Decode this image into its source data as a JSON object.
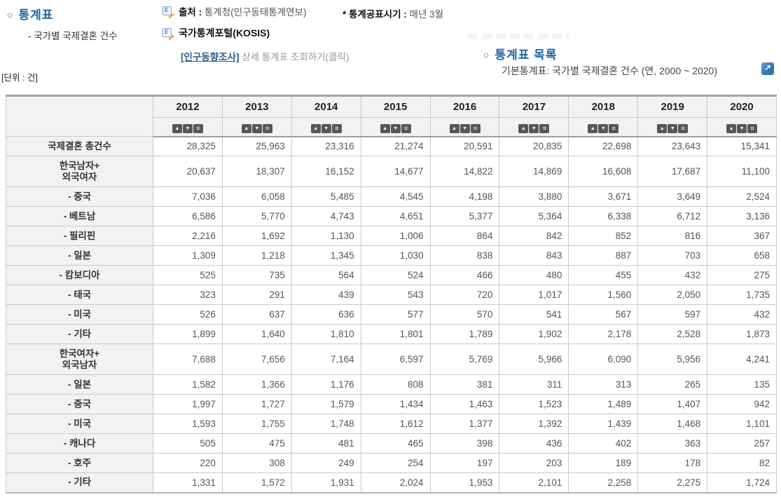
{
  "page": {
    "left_header": {
      "bullet": "○",
      "title": "통계표",
      "subtitle": "- 국가별 국제결혼 건수"
    },
    "source_block": {
      "source_label": "출처 :",
      "source_value": "통계청(인구동태통계연보)",
      "publish_label": "* 통계공표시기 :",
      "publish_value": "매년 3월",
      "kosis_label": "국가통계포털(KOSIS)",
      "detail_link_label": "[인구동향조사]",
      "detail_link_suffix": " 상세 통계표 조회하기(클릭)"
    },
    "right_header": {
      "bullet": "○",
      "title": "통계표 목록",
      "subtitle": "기본통계표: 국가별 국제결혼 건수 (연, 2000 ~ 2020)",
      "external_link_glyph": "↗"
    },
    "unit_label": "[단위 : 건]"
  },
  "colors": {
    "accent_blue": "#1b67a5",
    "link_navy": "#2f5d8c",
    "header_bg": "#f2f2f2",
    "sort_button_bg": "#575757",
    "extlink_blue": "#2e75b6"
  },
  "table": {
    "years": [
      "2012",
      "2013",
      "2014",
      "2015",
      "2016",
      "2017",
      "2018",
      "2019",
      "2020"
    ],
    "sort_buttons": [
      {
        "name": "sort-asc-button",
        "glyph": "▲"
      },
      {
        "name": "sort-desc-button",
        "glyph": "▼"
      },
      {
        "name": "sort-menu-button",
        "glyph": "≡"
      }
    ],
    "rows": [
      {
        "label": "국제결혼 총건수",
        "tall": false,
        "values": [
          "28,325",
          "25,963",
          "23,316",
          "21,274",
          "20,591",
          "20,835",
          "22,698",
          "23,643",
          "15,341"
        ]
      },
      {
        "label": "한국남자+\n외국여자",
        "tall": true,
        "values": [
          "20,637",
          "18,307",
          "16,152",
          "14,677",
          "14,822",
          "14,869",
          "16,608",
          "17,687",
          "11,100"
        ]
      },
      {
        "label": "- 중국",
        "tall": false,
        "values": [
          "7,036",
          "6,058",
          "5,485",
          "4,545",
          "4,198",
          "3,880",
          "3,671",
          "3,649",
          "2,524"
        ]
      },
      {
        "label": "- 베트남",
        "tall": false,
        "values": [
          "6,586",
          "5,770",
          "4,743",
          "4,651",
          "5,377",
          "5,364",
          "6,338",
          "6,712",
          "3,136"
        ]
      },
      {
        "label": "- 필리핀",
        "tall": false,
        "values": [
          "2,216",
          "1,692",
          "1,130",
          "1,006",
          "864",
          "842",
          "852",
          "816",
          "367"
        ]
      },
      {
        "label": "- 일본",
        "tall": false,
        "values": [
          "1,309",
          "1,218",
          "1,345",
          "1,030",
          "838",
          "843",
          "887",
          "703",
          "658"
        ]
      },
      {
        "label": "- 캄보디아",
        "tall": false,
        "values": [
          "525",
          "735",
          "564",
          "524",
          "466",
          "480",
          "455",
          "432",
          "275"
        ]
      },
      {
        "label": "- 태국",
        "tall": false,
        "values": [
          "323",
          "291",
          "439",
          "543",
          "720",
          "1,017",
          "1,560",
          "2,050",
          "1,735"
        ]
      },
      {
        "label": "- 미국",
        "tall": false,
        "values": [
          "526",
          "637",
          "636",
          "577",
          "570",
          "541",
          "567",
          "597",
          "432"
        ]
      },
      {
        "label": "- 기타",
        "tall": false,
        "values": [
          "1,899",
          "1,640",
          "1,810",
          "1,801",
          "1,789",
          "1,902",
          "2,178",
          "2,528",
          "1,873"
        ]
      },
      {
        "label": "한국여자+\n외국남자",
        "tall": true,
        "values": [
          "7,688",
          "7,656",
          "7,164",
          "6,597",
          "5,769",
          "5,966",
          "6,090",
          "5,956",
          "4,241"
        ]
      },
      {
        "label": "- 일본",
        "tall": false,
        "values": [
          "1,582",
          "1,366",
          "1,176",
          "808",
          "381",
          "311",
          "313",
          "265",
          "135"
        ]
      },
      {
        "label": "- 중국",
        "tall": false,
        "values": [
          "1,997",
          "1,727",
          "1,579",
          "1,434",
          "1,463",
          "1,523",
          "1,489",
          "1,407",
          "942"
        ]
      },
      {
        "label": "- 미국",
        "tall": false,
        "values": [
          "1,593",
          "1,755",
          "1,748",
          "1,612",
          "1,377",
          "1,392",
          "1,439",
          "1,468",
          "1,101"
        ]
      },
      {
        "label": "- 캐나다",
        "tall": false,
        "values": [
          "505",
          "475",
          "481",
          "465",
          "398",
          "436",
          "402",
          "363",
          "257"
        ]
      },
      {
        "label": "- 호주",
        "tall": false,
        "values": [
          "220",
          "308",
          "249",
          "254",
          "197",
          "203",
          "189",
          "178",
          "82"
        ]
      },
      {
        "label": "- 기타",
        "tall": false,
        "values": [
          "1,331",
          "1,572",
          "1,931",
          "2,024",
          "1,953",
          "2,101",
          "2,258",
          "2,275",
          "1,724"
        ]
      }
    ]
  }
}
